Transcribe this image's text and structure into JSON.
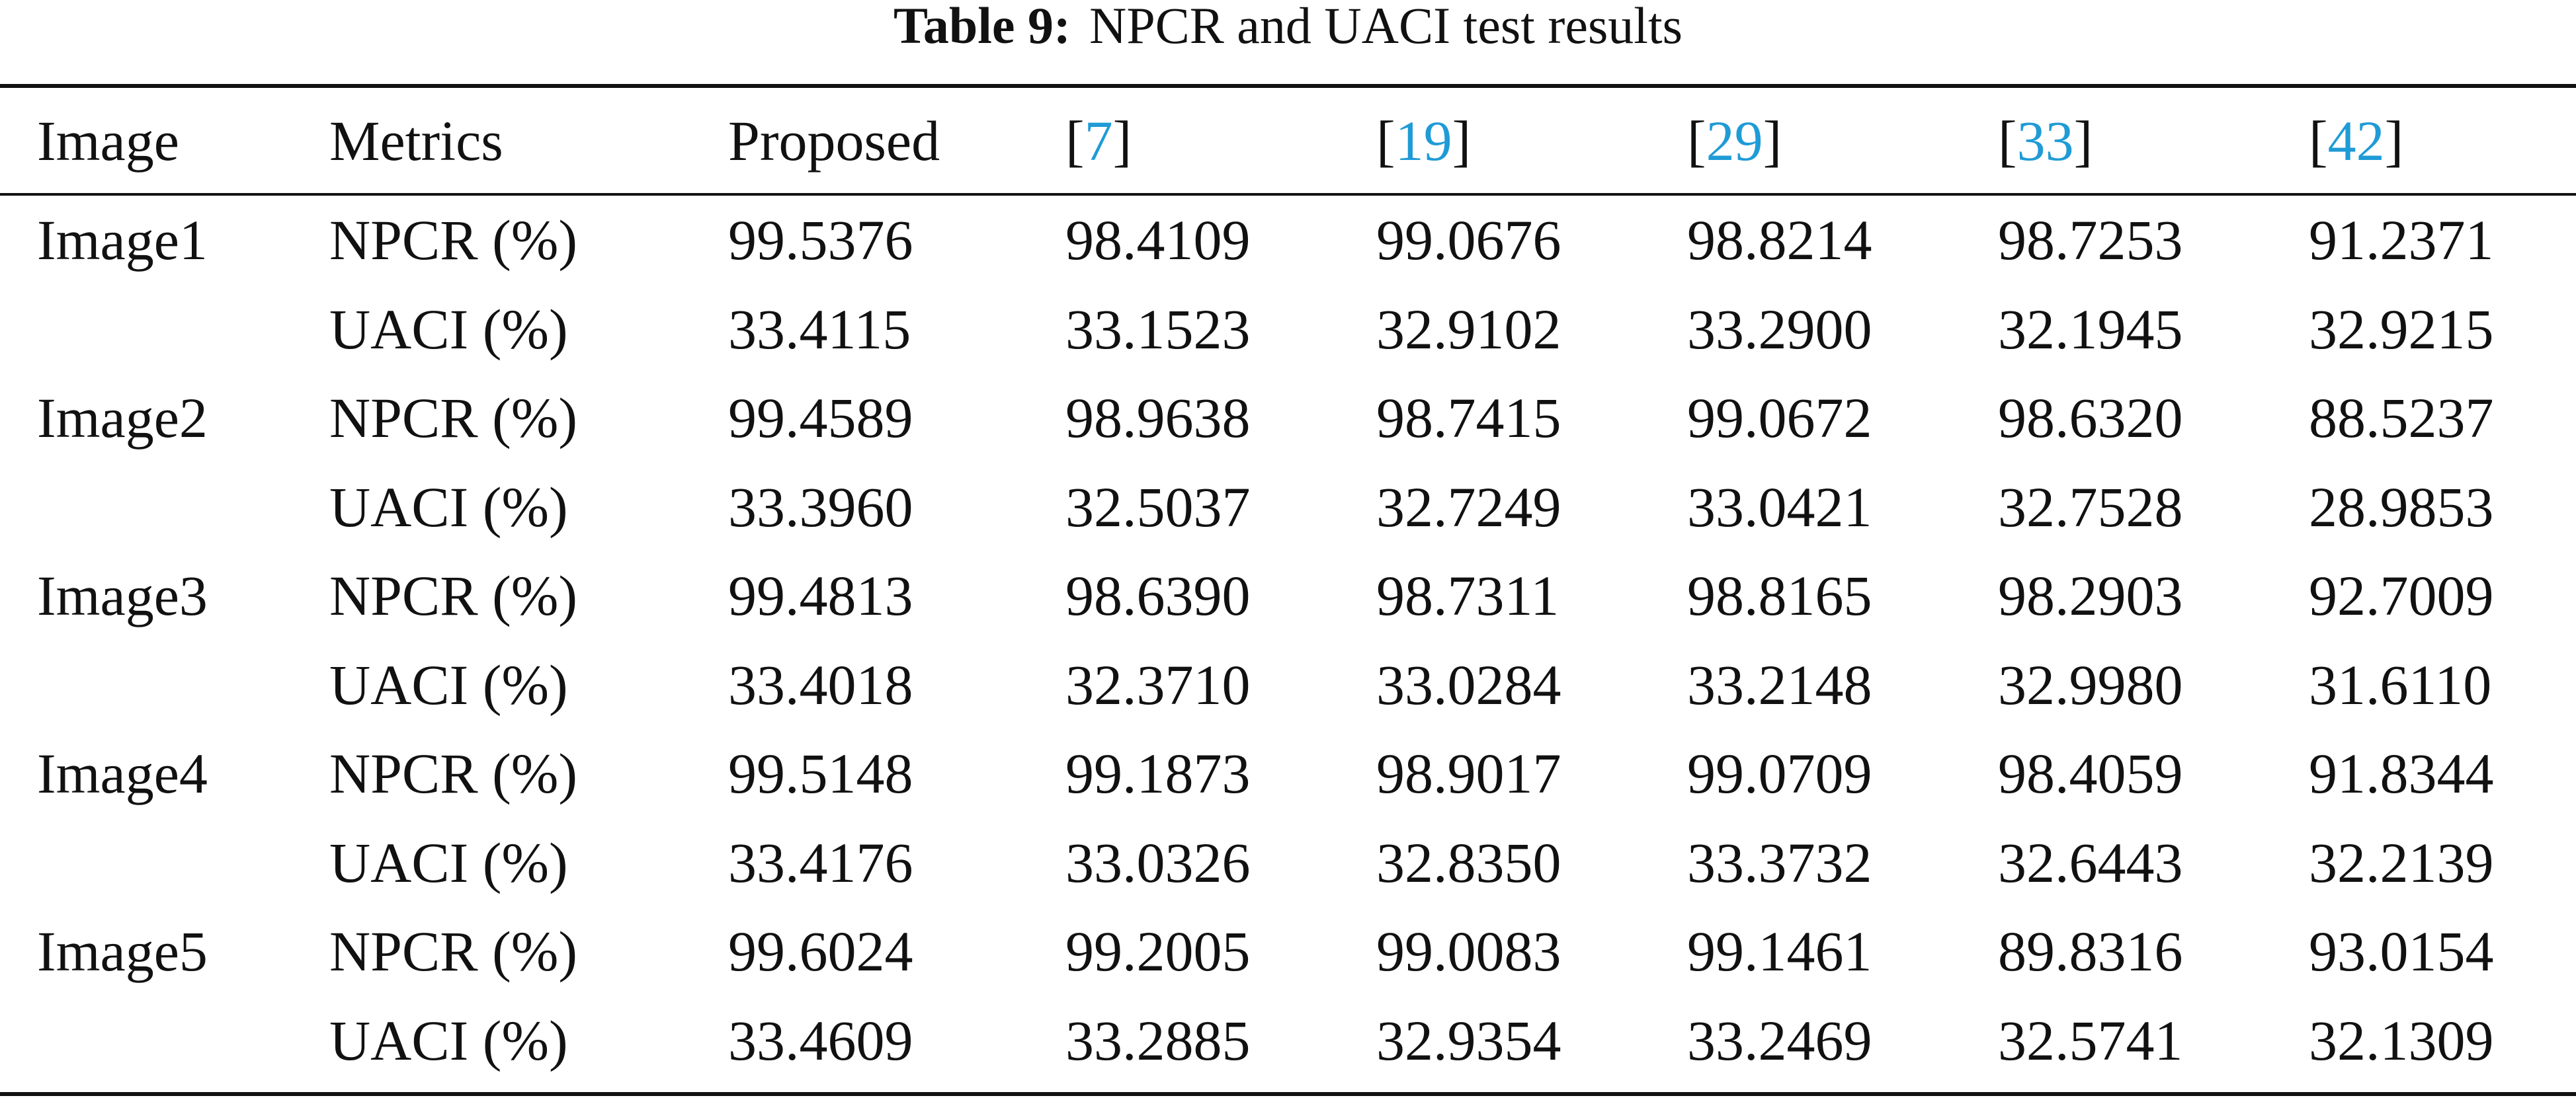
{
  "caption": {
    "label": "Table 9:",
    "title": "NPCR and UACI test results"
  },
  "header": {
    "image": "Image",
    "metrics": "Metrics",
    "proposed": "Proposed",
    "refs": [
      {
        "open": "[",
        "num": "7",
        "close": "]"
      },
      {
        "open": "[",
        "num": "19",
        "close": "]"
      },
      {
        "open": "[",
        "num": "29",
        "close": "]"
      },
      {
        "open": "[",
        "num": "33",
        "close": "]"
      },
      {
        "open": "[",
        "num": "42",
        "close": "]"
      }
    ]
  },
  "rows": [
    {
      "image": "Image1",
      "metric": "NPCR (%)",
      "values": [
        "99.5376",
        "98.4109",
        "99.0676",
        "98.8214",
        "98.7253",
        "91.2371"
      ]
    },
    {
      "image": "",
      "metric": "UACI (%)",
      "values": [
        "33.4115",
        "33.1523",
        "32.9102",
        "33.2900",
        "32.1945",
        "32.9215"
      ]
    },
    {
      "image": "Image2",
      "metric": "NPCR (%)",
      "values": [
        "99.4589",
        "98.9638",
        "98.7415",
        "99.0672",
        "98.6320",
        "88.5237"
      ]
    },
    {
      "image": "",
      "metric": "UACI (%)",
      "values": [
        "33.3960",
        "32.5037",
        "32.7249",
        "33.0421",
        "32.7528",
        "28.9853"
      ]
    },
    {
      "image": "Image3",
      "metric": "NPCR (%)",
      "values": [
        "99.4813",
        "98.6390",
        "98.7311",
        "98.8165",
        "98.2903",
        "92.7009"
      ]
    },
    {
      "image": "",
      "metric": "UACI (%)",
      "values": [
        "33.4018",
        "32.3710",
        "33.0284",
        "33.2148",
        "32.9980",
        "31.6110"
      ]
    },
    {
      "image": "Image4",
      "metric": "NPCR (%)",
      "values": [
        "99.5148",
        "99.1873",
        "98.9017",
        "99.0709",
        "98.4059",
        "91.8344"
      ]
    },
    {
      "image": "",
      "metric": "UACI (%)",
      "values": [
        "33.4176",
        "33.0326",
        "32.8350",
        "33.3732",
        "32.6443",
        "32.2139"
      ]
    },
    {
      "image": "Image5",
      "metric": "NPCR (%)",
      "values": [
        "99.6024",
        "99.2005",
        "99.0083",
        "99.1461",
        "89.8316",
        "93.0154"
      ]
    },
    {
      "image": "",
      "metric": "UACI (%)",
      "values": [
        "33.4609",
        "33.2885",
        "32.9354",
        "33.2469",
        "32.5741",
        "32.1309"
      ]
    }
  ]
}
